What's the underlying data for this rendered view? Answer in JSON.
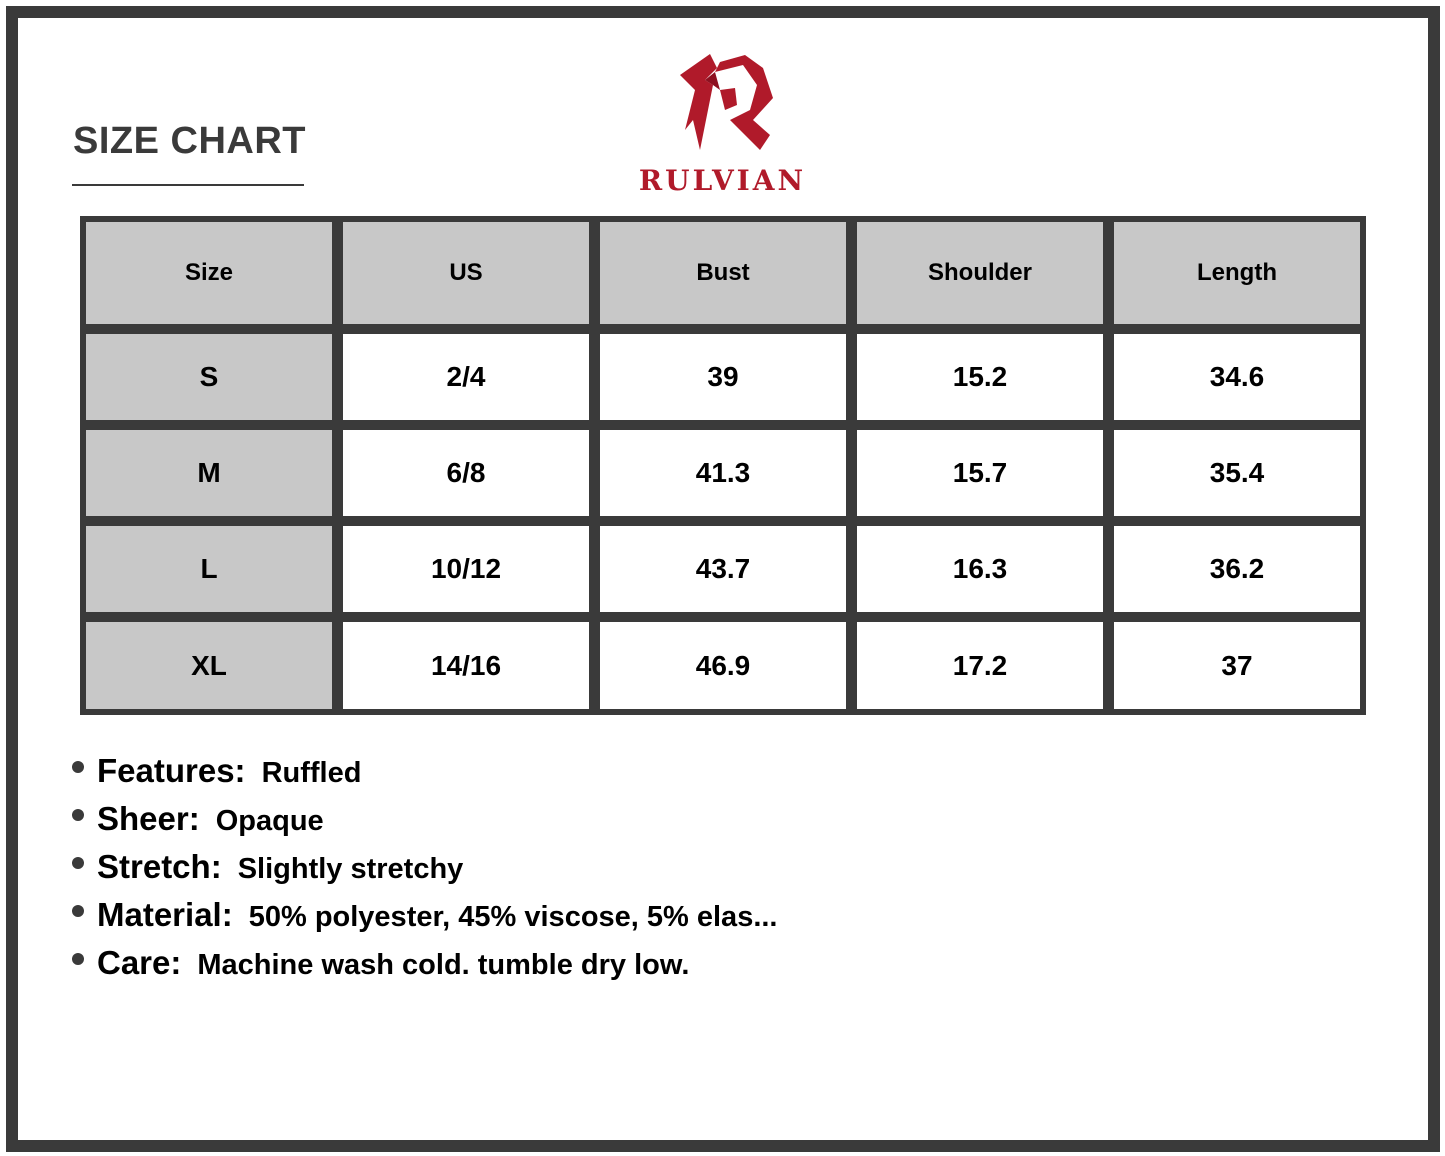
{
  "header": {
    "title": "SIZE CHART"
  },
  "brand": {
    "name": "RULVIAN",
    "color": "#b01a2a"
  },
  "table": {
    "columns": [
      "Size",
      "US",
      "Bust",
      "Shoulder",
      "Length"
    ],
    "rows": [
      [
        "S",
        "2/4",
        "39",
        "15.2",
        "34.6"
      ],
      [
        "M",
        "6/8",
        "41.3",
        "15.7",
        "35.4"
      ],
      [
        "L",
        "10/12",
        "43.7",
        "16.3",
        "36.2"
      ],
      [
        "XL",
        "14/16",
        "46.9",
        "17.2",
        "37"
      ]
    ]
  },
  "features": [
    {
      "label": "Features:",
      "value": "Ruffled"
    },
    {
      "label": "Sheer:",
      "value": "Opaque"
    },
    {
      "label": "Stretch:",
      "value": "Slightly stretchy"
    },
    {
      "label": "Material:",
      "value": "50% polyester, 45% viscose, 5% elas..."
    },
    {
      "label": "Care:",
      "value": "Machine wash cold. tumble dry low."
    }
  ]
}
